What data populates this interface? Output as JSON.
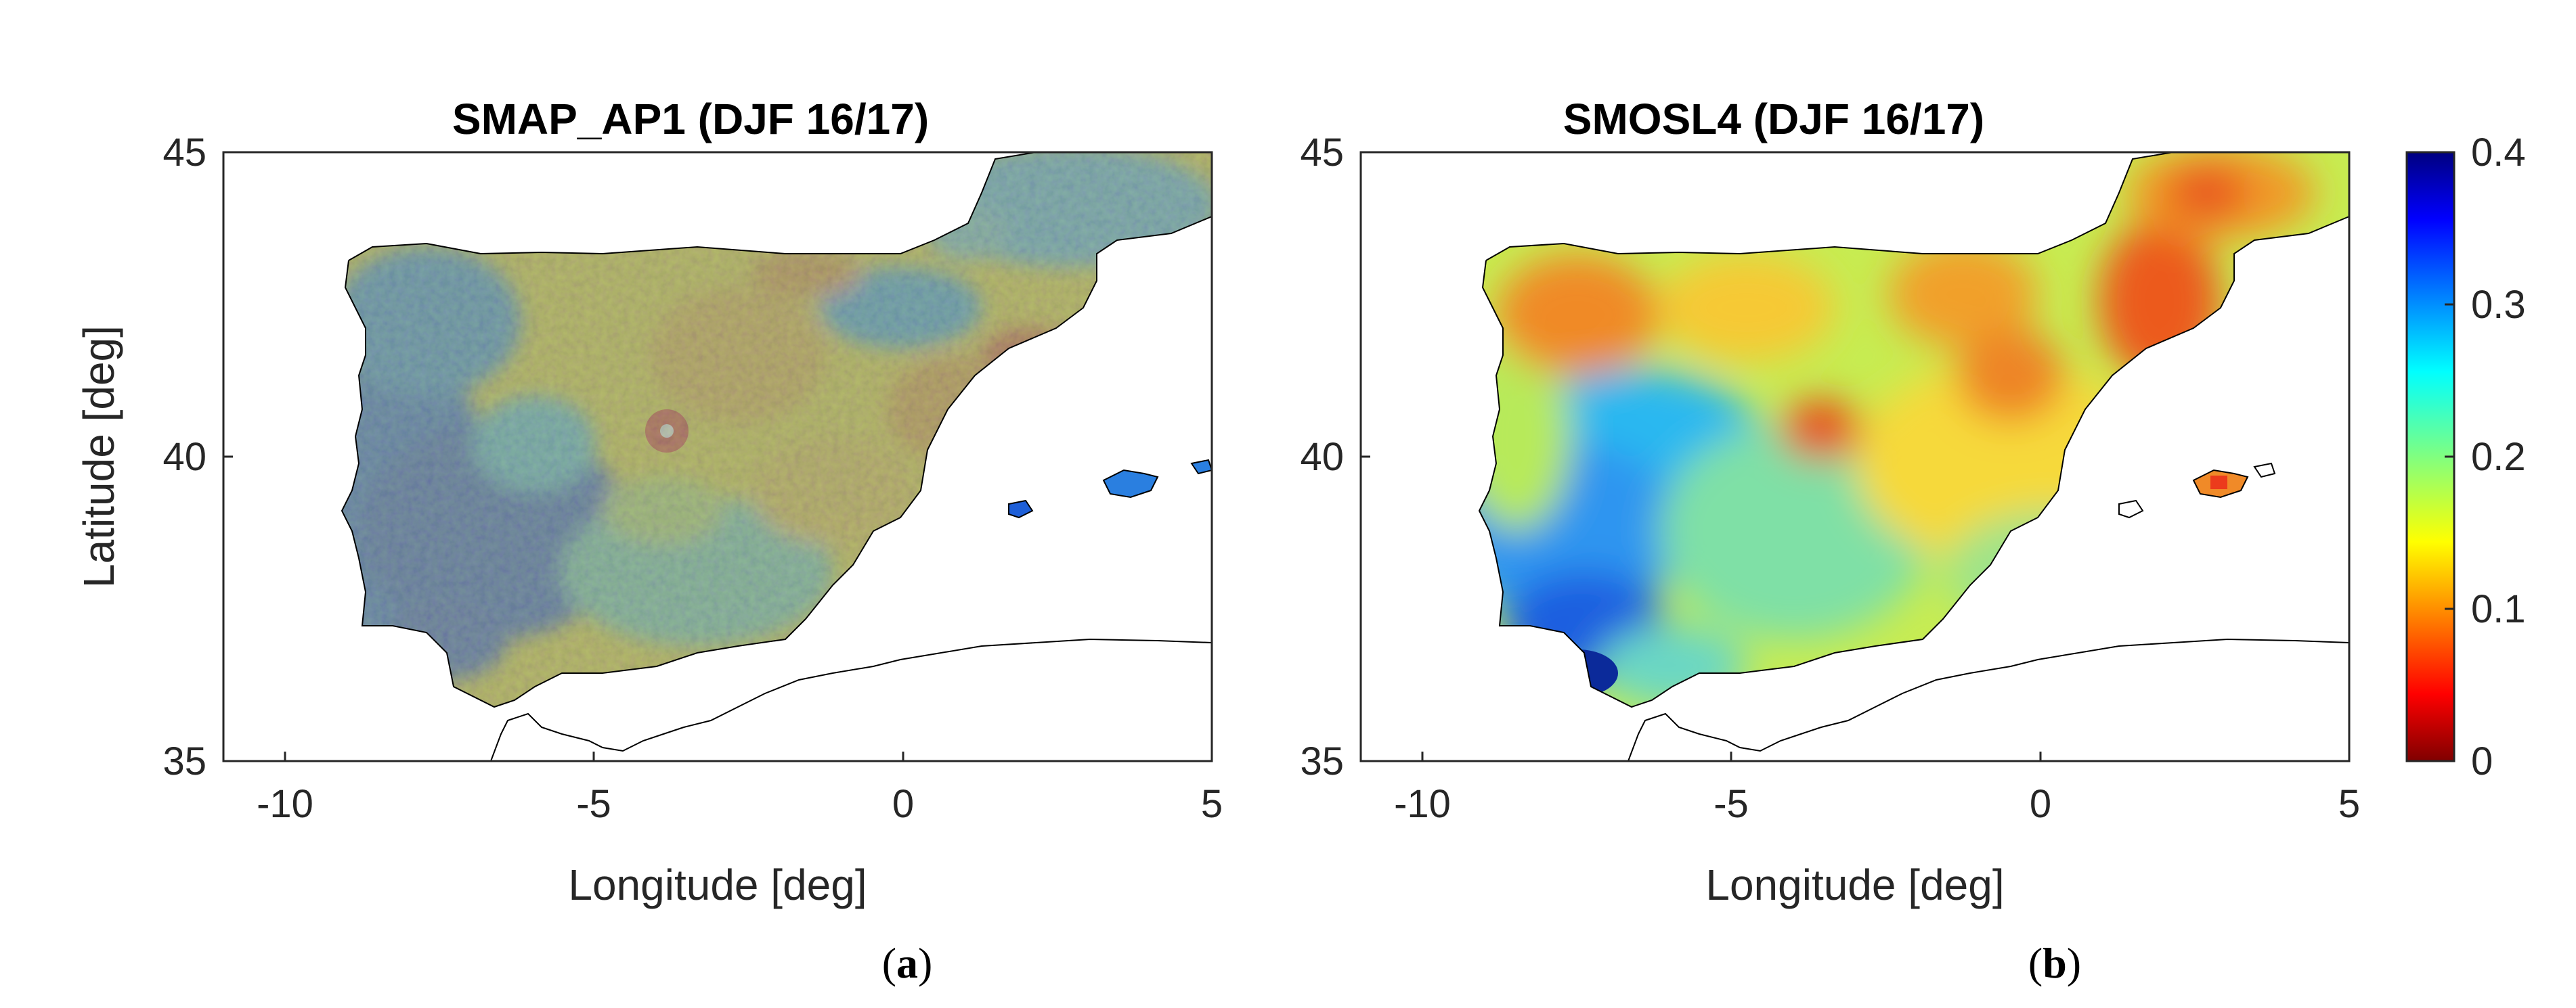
{
  "figure": {
    "panel_a": {
      "title": "SMAP_AP1 (DJF 16/17)",
      "xlabel": "Longitude [deg]",
      "ylabel": "Latitude [deg]",
      "tag_open": "(",
      "tag_letter": "a",
      "tag_close": ")"
    },
    "panel_b": {
      "title": "SMOSL4 (DJF 16/17)",
      "xlabel": "Longitude [deg]",
      "tag_open": "(",
      "tag_letter": "b",
      "tag_close": ")"
    }
  },
  "chart_data": [
    {
      "type": "heatmap",
      "title": "SMAP_AP1 (DJF 16/17)",
      "xlabel": "Longitude [deg]",
      "ylabel": "Latitude [deg]",
      "xlim": [
        -11,
        5
      ],
      "ylim": [
        35,
        45
      ],
      "xticks": [
        "-10",
        "-5",
        "0",
        "5"
      ],
      "yticks": [
        "35",
        "40",
        "45"
      ],
      "colormap": "jet (reversed)",
      "clim": [
        0,
        0.4
      ]
    },
    {
      "type": "heatmap",
      "title": "SMOSL4 (DJF 16/17)",
      "xlabel": "Longitude [deg]",
      "xlim": [
        -11,
        5
      ],
      "ylim": [
        35,
        45
      ],
      "xticks": [
        "-10",
        "-5",
        "0",
        "5"
      ],
      "yticks": [
        "35",
        "40",
        "45"
      ],
      "colormap": "jet (reversed)",
      "clim": [
        0,
        0.4
      ],
      "colorbar_ticks": [
        "0",
        "0.1",
        "0.2",
        "0.3",
        "0.4"
      ]
    }
  ],
  "colors": {
    "dry": "#800000",
    "red": "#e8251a",
    "orange": "#f7a21e",
    "yellow": "#f0ee22",
    "green": "#8fe08a",
    "cyan": "#33c9f0",
    "blue": "#1a4fd6",
    "wet": "#0b1c8f"
  }
}
